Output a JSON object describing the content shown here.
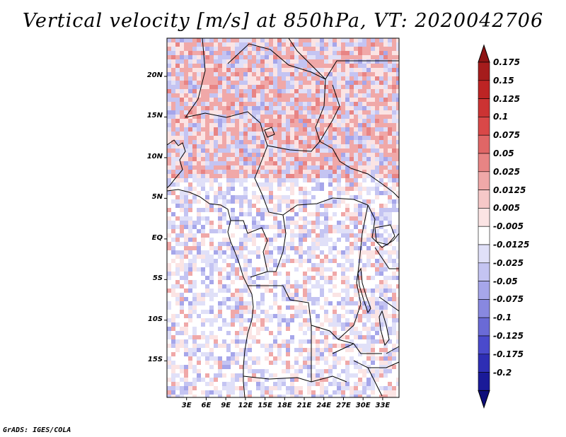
{
  "title": "Vertical velocity [m/s] at 850hPa, VT: 2020042706",
  "credit": "GrADS: IGES/COLA",
  "lat_labels": [
    "20N",
    "15N",
    "10N",
    "5N",
    "EQ",
    "5S",
    "10S",
    "15S"
  ],
  "lon_labels": [
    "3E",
    "6E",
    "9E",
    "12E",
    "15E",
    "18E",
    "21E",
    "24E",
    "27E",
    "30E",
    "33E"
  ],
  "colorbar": {
    "labels": [
      "0.175",
      "0.15",
      "0.125",
      "0.1",
      "0.075",
      "0.05",
      "0.025",
      "0.0125",
      "0.005",
      "-0.005",
      "-0.0125",
      "-0.025",
      "-0.05",
      "-0.075",
      "-0.1",
      "-0.125",
      "-0.175",
      "-0.2"
    ],
    "colors": [
      "#a51c1c",
      "#bd2424",
      "#cc3333",
      "#d94848",
      "#e06666",
      "#e88484",
      "#f0a8a8",
      "#f6c8c8",
      "#fbe4e4",
      "#ffffff",
      "#e0e0f8",
      "#c4c4f2",
      "#a6a6ea",
      "#8888e0",
      "#6a6ad6",
      "#4a4acc",
      "#2e2eb4",
      "#1a1a98"
    ],
    "top_color": "#8e1414",
    "bottom_color": "#0e0e7a"
  },
  "map": {
    "lat_range": [
      -19.5,
      24.7
    ],
    "lon_range": [
      0,
      35.5
    ],
    "field_colors": [
      "#ffffff",
      "#fbe4e4",
      "#f0a8a8",
      "#e88484",
      "#e0e0f8",
      "#c4c4f2",
      "#a6a6ea"
    ]
  }
}
